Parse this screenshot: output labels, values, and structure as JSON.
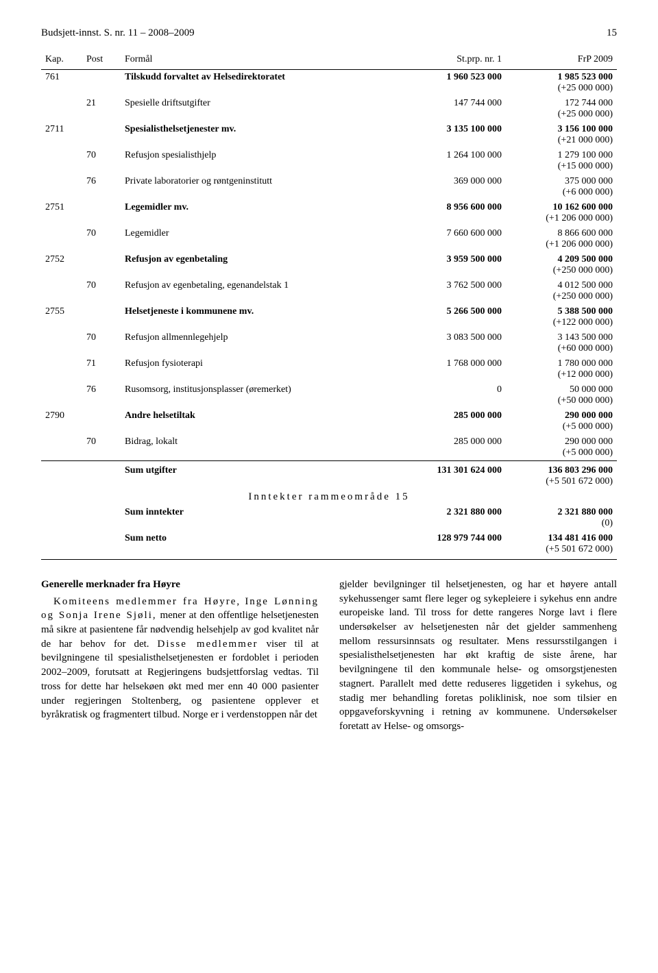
{
  "header": {
    "title": "Budsjett-innst. S. nr. 11 – 2008–2009",
    "page": "15"
  },
  "table": {
    "columns": {
      "kap": "Kap.",
      "post": "Post",
      "label": "Formål",
      "val1": "St.prp. nr. 1",
      "val2": "FrP 2009"
    },
    "rows": [
      {
        "type": "chapter",
        "kap": "761",
        "post": "",
        "label": "Tilskudd forvaltet av Helsedirektoratet",
        "v1": "1 960 523 000",
        "v2": "1 985 523 000",
        "d": "(+25 000 000)"
      },
      {
        "type": "item",
        "kap": "",
        "post": "21",
        "label": "Spesielle driftsutgifter",
        "v1": "147 744 000",
        "v2": "172 744 000",
        "d": "(+25 000 000)"
      },
      {
        "type": "chapter",
        "kap": "2711",
        "post": "",
        "label": "Spesialisthelsetjenester mv.",
        "v1": "3 135 100 000",
        "v2": "3 156 100 000",
        "d": "(+21 000 000)"
      },
      {
        "type": "item",
        "kap": "",
        "post": "70",
        "label": "Refusjon spesialisthjelp",
        "v1": "1 264 100 000",
        "v2": "1 279 100 000",
        "d": "(+15 000 000)"
      },
      {
        "type": "item",
        "kap": "",
        "post": "76",
        "label": "Private laboratorier og røntgeninstitutt",
        "v1": "369 000 000",
        "v2": "375 000 000",
        "d": "(+6 000 000)"
      },
      {
        "type": "chapter",
        "kap": "2751",
        "post": "",
        "label": "Legemidler mv.",
        "v1": "8 956 600 000",
        "v2": "10 162 600 000",
        "d": "(+1 206 000 000)"
      },
      {
        "type": "item",
        "kap": "",
        "post": "70",
        "label": "Legemidler",
        "v1": "7 660 600 000",
        "v2": "8 866 600 000",
        "d": "(+1 206 000 000)"
      },
      {
        "type": "chapter",
        "kap": "2752",
        "post": "",
        "label": "Refusjon av egenbetaling",
        "v1": "3 959 500 000",
        "v2": "4 209 500 000",
        "d": "(+250 000 000)"
      },
      {
        "type": "item",
        "kap": "",
        "post": "70",
        "label": "Refusjon av egenbetaling, egenandelstak 1",
        "v1": "3 762 500 000",
        "v2": "4 012 500 000",
        "d": "(+250 000 000)"
      },
      {
        "type": "chapter",
        "kap": "2755",
        "post": "",
        "label": "Helsetjeneste i kommunene mv.",
        "v1": "5 266 500 000",
        "v2": "5 388 500 000",
        "d": "(+122 000 000)"
      },
      {
        "type": "item",
        "kap": "",
        "post": "70",
        "label": "Refusjon allmennlegehjelp",
        "v1": "3 083 500 000",
        "v2": "3 143 500 000",
        "d": "(+60 000 000)"
      },
      {
        "type": "item",
        "kap": "",
        "post": "71",
        "label": "Refusjon fysioterapi",
        "v1": "1 768 000 000",
        "v2": "1 780 000 000",
        "d": "(+12 000 000)"
      },
      {
        "type": "item",
        "kap": "",
        "post": "76",
        "label": "Rusomsorg, institusjonsplasser (øremerket)",
        "v1": "0",
        "v2": "50 000 000",
        "d": "(+50 000 000)"
      },
      {
        "type": "chapter",
        "kap": "2790",
        "post": "",
        "label": "Andre helsetiltak",
        "v1": "285 000 000",
        "v2": "290 000 000",
        "d": "(+5 000 000)"
      },
      {
        "type": "item",
        "kap": "",
        "post": "70",
        "label": "Bidrag, lokalt",
        "v1": "285 000 000",
        "v2": "290 000 000",
        "d": "(+5 000 000)"
      },
      {
        "type": "sum",
        "kap": "",
        "post": "",
        "label": "Sum utgifter",
        "v1": "131 301 624 000",
        "v2": "136 803 296 000",
        "d": "(+5 501 672 000)"
      }
    ],
    "section_heading": "Inntekter rammeområde 15",
    "rows2": [
      {
        "type": "sum2",
        "label": "Sum inntekter",
        "v1": "2 321 880 000",
        "v2": "2 321 880 000",
        "d": "(0)"
      },
      {
        "type": "sum2",
        "label": "Sum netto",
        "v1": "128 979 744 000",
        "v2": "134 481 416 000",
        "d": "(+5 501 672 000)"
      }
    ]
  },
  "body": {
    "left": {
      "heading": "Generelle merknader fra Høyre",
      "p1a": "Komiteens medlemmer fra Høyre,",
      "p1b": "Inge Lønning og Sonja Irene Sjøli,",
      "p1c": " mener at den offentlige helsetjenesten må sikre at pasientene får nødvendig helsehjelp av god kvalitet når de har behov for det. ",
      "p1d": "Disse medlemmer",
      "p1e": " viser til at bevilgningene til spesialisthelsetjenesten er fordoblet i perioden 2002–2009, forutsatt at Regjeringens budsjettforslag vedtas. Til tross for dette har helsekøen økt med mer enn 40 000 pasienter under regjeringen Stoltenberg, og pasientene opplever et byråkratisk og fragmentert tilbud. Norge er i verdenstoppen når det"
    },
    "right": {
      "p1": "gjelder bevilgninger til helsetjenesten, og har et høyere antall sykehussenger samt flere leger og sykepleiere i sykehus enn andre europeiske land. Til tross for dette rangeres Norge lavt i flere undersøkelser av helsetjenesten når det gjelder sammenheng mellom ressursinnsats og resultater. Mens ressursstilgangen i spesialisthelsetjenesten har økt kraftig de siste årene, har bevilgningene til den kommunale helse- og omsorgstjenesten stagnert. Parallelt med dette reduseres liggetiden i sykehus, og stadig mer behandling foretas poliklinisk, noe som tilsier en oppgaveforskyvning i retning av kommunene. Undersøkelser foretatt av Helse- og omsorgs-"
    }
  }
}
